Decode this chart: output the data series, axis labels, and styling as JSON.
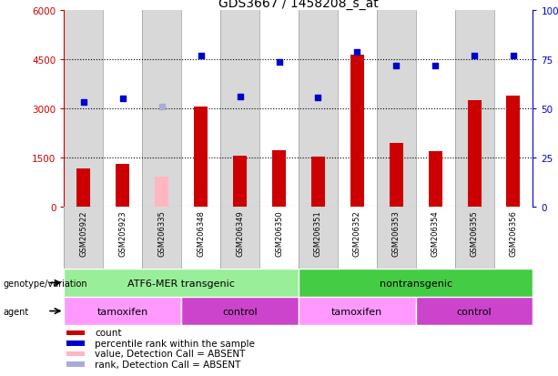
{
  "title": "GDS3667 / 1458208_s_at",
  "samples": [
    "GSM205922",
    "GSM205923",
    "GSM206335",
    "GSM206348",
    "GSM206349",
    "GSM206350",
    "GSM206351",
    "GSM206352",
    "GSM206353",
    "GSM206354",
    "GSM206355",
    "GSM206356"
  ],
  "counts": [
    1150,
    1300,
    null,
    3050,
    1540,
    1720,
    1520,
    4650,
    1950,
    1700,
    3260,
    3380
  ],
  "absent_value": [
    null,
    null,
    900,
    null,
    null,
    null,
    null,
    null,
    null,
    null,
    null,
    null
  ],
  "percentile_ranks": [
    53.5,
    55,
    null,
    77,
    56,
    73.5,
    55.5,
    79,
    72,
    72,
    77,
    77
  ],
  "absent_rank": [
    null,
    null,
    51,
    null,
    null,
    null,
    null,
    null,
    null,
    null,
    null,
    null
  ],
  "ylim_left": [
    0,
    6000
  ],
  "ylim_right": [
    0,
    100
  ],
  "yticks_left": [
    0,
    1500,
    3000,
    4500,
    6000
  ],
  "yticks_right": [
    0,
    25,
    50,
    75,
    100
  ],
  "ytick_labels_left": [
    "0",
    "1500",
    "3000",
    "4500",
    "6000"
  ],
  "ytick_labels_right": [
    "0",
    "25",
    "50",
    "75",
    "100%"
  ],
  "bar_color_normal": "#cc0000",
  "bar_color_absent": "#ffb6c1",
  "scatter_color_normal": "#0000cc",
  "scatter_color_absent": "#aaaadd",
  "grid_color": "#000000",
  "bg_color": "#ffffff",
  "plot_bg": "#ffffff",
  "col_alt_color": "#d8d8d8",
  "col_border_color": "#999999",
  "genotype_groups": [
    {
      "label": "ATF6-MER transgenic",
      "start": 0,
      "end": 6,
      "color": "#99ee99"
    },
    {
      "label": "nontransgenic",
      "start": 6,
      "end": 12,
      "color": "#44cc44"
    }
  ],
  "agent_groups": [
    {
      "label": "tamoxifen",
      "start": 0,
      "end": 3,
      "color": "#ff99ff"
    },
    {
      "label": "control",
      "start": 3,
      "end": 6,
      "color": "#cc44cc"
    },
    {
      "label": "tamoxifen",
      "start": 6,
      "end": 9,
      "color": "#ff99ff"
    },
    {
      "label": "control",
      "start": 9,
      "end": 12,
      "color": "#cc44cc"
    }
  ],
  "legend_items": [
    {
      "label": "count",
      "color": "#cc0000"
    },
    {
      "label": "percentile rank within the sample",
      "color": "#0000cc"
    },
    {
      "label": "value, Detection Call = ABSENT",
      "color": "#ffb6c1"
    },
    {
      "label": "rank, Detection Call = ABSENT",
      "color": "#aaaadd"
    }
  ],
  "bar_width": 0.35
}
